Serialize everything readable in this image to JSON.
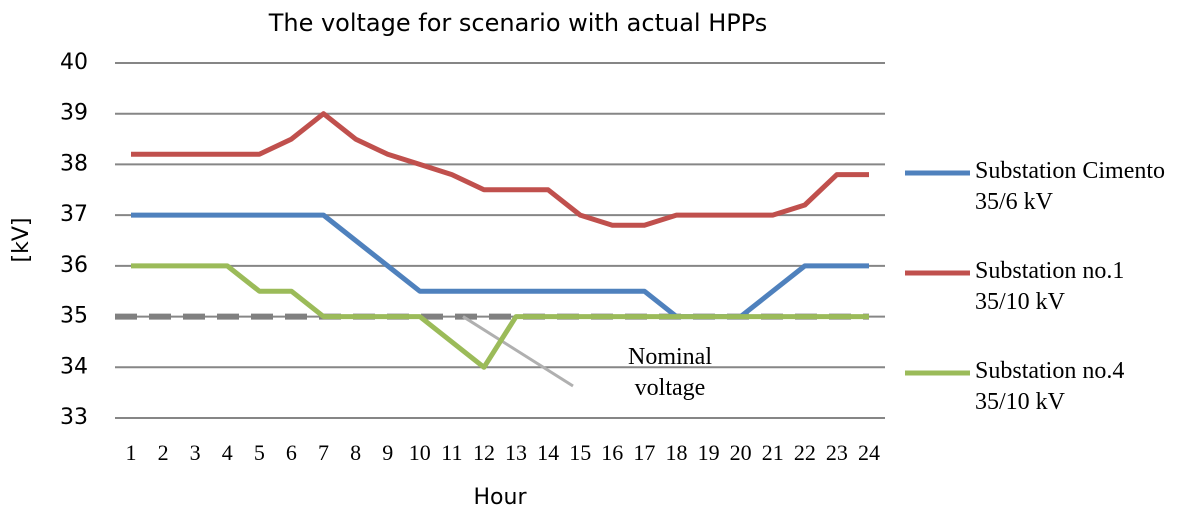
{
  "chart_data": {
    "type": "line",
    "title": "The voltage for scenario with actual HPPs",
    "y_label": "[kV]",
    "x_label": "Hour",
    "categories": [
      "1",
      "2",
      "3",
      "4",
      "5",
      "6",
      "7",
      "8",
      "9",
      "10",
      "11",
      "12",
      "13",
      "14",
      "15",
      "16",
      "17",
      "18",
      "19",
      "20",
      "21",
      "22",
      "23",
      "24"
    ],
    "series": [
      {
        "name": "Substation Cimento 35/6 kV",
        "color": "#4f81bd",
        "values": [
          37,
          37,
          37,
          37,
          37,
          37,
          37,
          36.5,
          36,
          35.5,
          35.5,
          35.5,
          35.5,
          35.5,
          35.5,
          35.5,
          35.5,
          35,
          35,
          35,
          35.5,
          36,
          36,
          36
        ]
      },
      {
        "name": "Substation no.1 35/10 kV",
        "color": "#c0504d",
        "values": [
          38.2,
          38.2,
          38.2,
          38.2,
          38.2,
          38.5,
          39,
          38.5,
          38.2,
          38,
          37.8,
          37.5,
          37.5,
          37.5,
          37,
          36.8,
          36.8,
          37,
          37,
          37,
          37,
          37.2,
          37.8,
          37.8
        ]
      },
      {
        "name": "Substation no.4 35/10 kV",
        "color": "#9bbb59",
        "values": [
          36,
          36,
          36,
          36,
          35.5,
          35.5,
          35,
          35,
          35,
          35,
          34.5,
          34,
          35,
          35,
          35,
          35,
          35,
          35,
          35,
          35,
          35,
          35,
          35,
          35
        ]
      }
    ],
    "reference": {
      "value": 35,
      "color": "#808080"
    },
    "annotation": "Nominal voltage",
    "ylim": [
      33,
      40
    ],
    "yticks": [
      33,
      34,
      35,
      36,
      37,
      38,
      39,
      40
    ],
    "grid": true
  }
}
